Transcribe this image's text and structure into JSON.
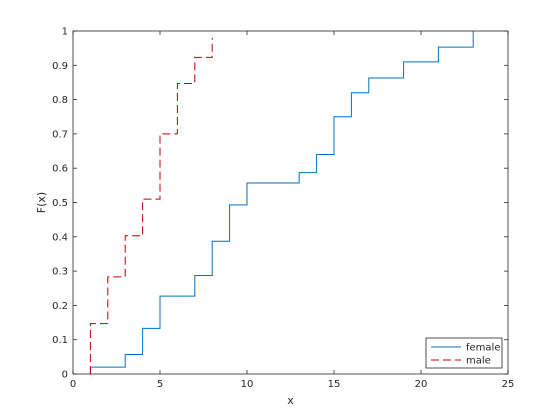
{
  "chart_data": {
    "type": "line",
    "xlabel": "x",
    "ylabel": "F(x)",
    "xlim": [
      0,
      25
    ],
    "ylim": [
      0,
      1
    ],
    "xticks": [
      0,
      5,
      10,
      15,
      20,
      25
    ],
    "yticks": [
      0,
      0.1,
      0.2,
      0.3,
      0.4,
      0.5,
      0.6,
      0.7,
      0.8,
      0.9,
      1
    ],
    "xtick_labels": [
      "0",
      "5",
      "10",
      "15",
      "20",
      "25"
    ],
    "ytick_labels": [
      "0",
      "0.1",
      "0.2",
      "0.3",
      "0.4",
      "0.5",
      "0.6",
      "0.7",
      "0.8",
      "0.9",
      "1"
    ],
    "grid": false,
    "legend_position": "bottom-right",
    "series": [
      {
        "name": "female",
        "color": "#0072bd",
        "dash": "solid",
        "x": [
          1,
          3,
          4,
          5,
          7,
          8,
          9,
          10,
          13,
          14,
          15,
          16,
          17,
          19,
          21,
          23
        ],
        "y": [
          0.02,
          0.057,
          0.133,
          0.227,
          0.287,
          0.387,
          0.493,
          0.557,
          0.587,
          0.64,
          0.75,
          0.82,
          0.863,
          0.91,
          0.953,
          1.0
        ]
      },
      {
        "name": "male",
        "color": "#c00000",
        "dash": "dashed",
        "x": [
          1,
          2,
          3,
          4,
          5,
          6,
          7,
          8
        ],
        "y": [
          0.147,
          0.283,
          0.403,
          0.51,
          0.7,
          0.847,
          0.923,
          0.98
        ]
      }
    ]
  }
}
